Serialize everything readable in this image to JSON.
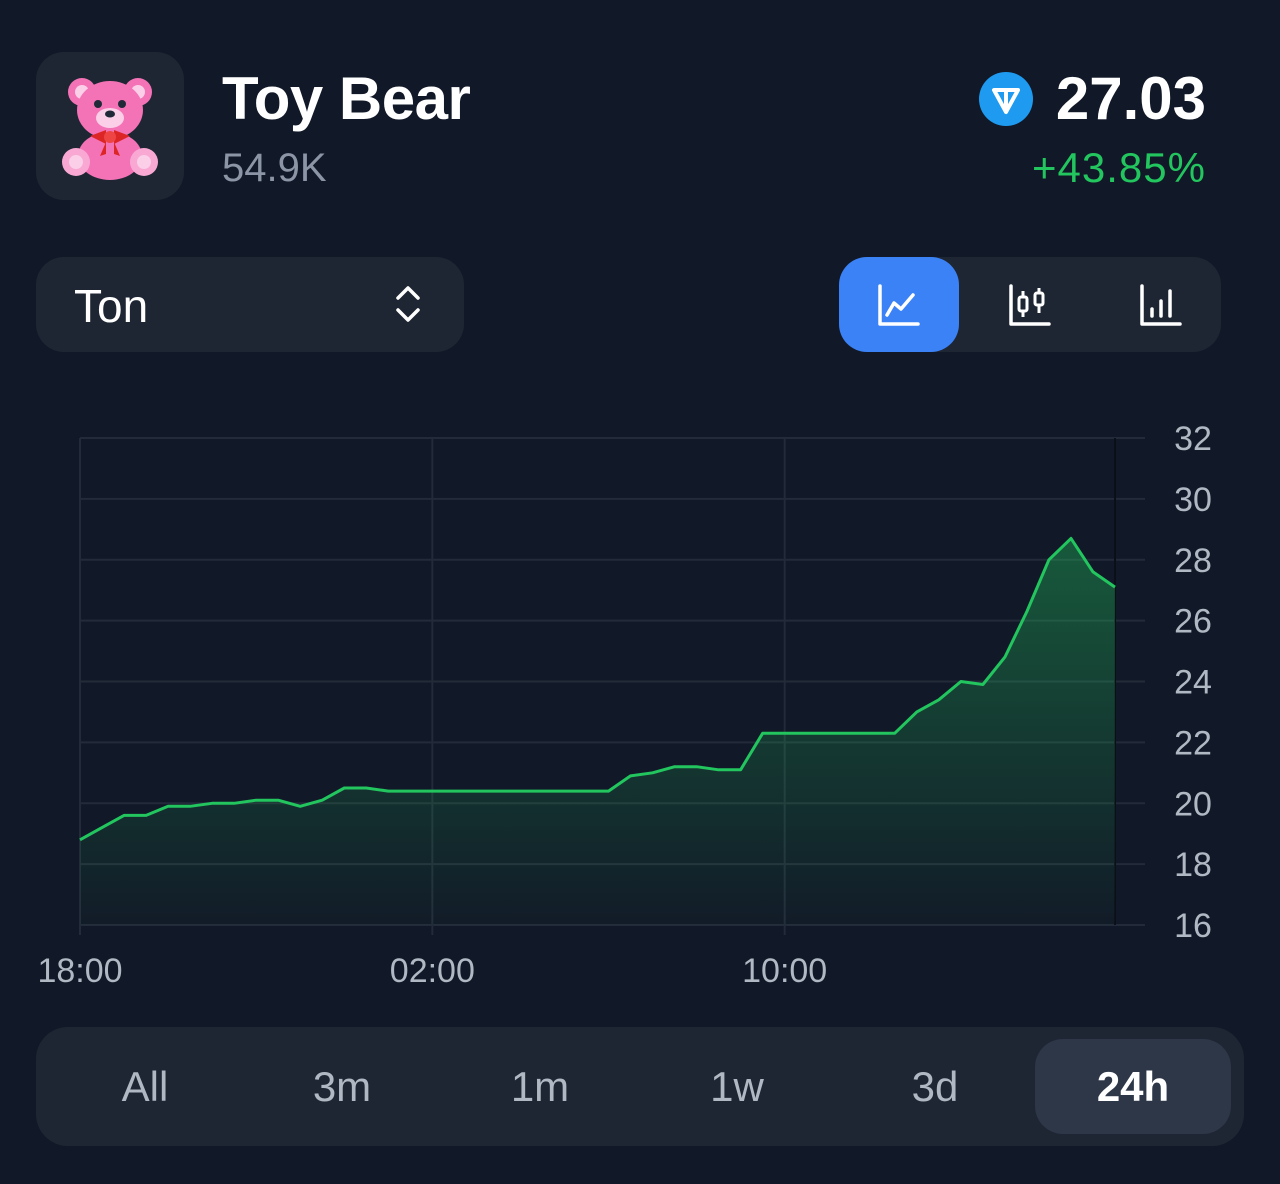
{
  "header": {
    "title": "Toy Bear",
    "subtitle": "54.9K",
    "price": "27.03",
    "change": "+43.85%",
    "currency_icon": "ton-icon",
    "avatar_icon": "teddy-bear-icon"
  },
  "currency_selector": {
    "value": "Ton",
    "icon": "chevron-up-down-icon"
  },
  "chart_type_buttons": [
    {
      "name": "line-chart",
      "icon": "line-chart-icon",
      "active": true
    },
    {
      "name": "candlestick-chart",
      "icon": "candlestick-icon",
      "active": false
    },
    {
      "name": "bar-chart",
      "icon": "bar-chart-icon",
      "active": false
    }
  ],
  "time_ranges": [
    {
      "label": "All",
      "active": false
    },
    {
      "label": "3m",
      "active": false
    },
    {
      "label": "1m",
      "active": false
    },
    {
      "label": "1w",
      "active": false
    },
    {
      "label": "3d",
      "active": false
    },
    {
      "label": "24h",
      "active": true
    }
  ],
  "colors": {
    "background": "#111827",
    "panel": "#1f2633",
    "accent": "#3b82f6",
    "positive": "#22c55e",
    "ton": "#1e9bf0"
  },
  "chart_data": {
    "type": "area",
    "x_tick_labels": [
      "18:00",
      "02:00",
      "10:00"
    ],
    "y_ticks": [
      16,
      18,
      20,
      22,
      24,
      26,
      28,
      30,
      32
    ],
    "ylim": [
      16,
      32
    ],
    "xlim_hours": [
      0,
      23.5
    ],
    "grid": true,
    "line_color": "#22c55e",
    "series": [
      {
        "x_hours": [
          0,
          0.5,
          1,
          1.5,
          2,
          2.5,
          3,
          3.5,
          4,
          4.5,
          5,
          5.5,
          6,
          6.5,
          7,
          7.5,
          8,
          8.5,
          9,
          9.5,
          10,
          10.5,
          11,
          11.5,
          12,
          12.5,
          13,
          13.5,
          14,
          14.5,
          15,
          15.5,
          16,
          16.5,
          17,
          17.5,
          18,
          18.5,
          19,
          19.5,
          20,
          20.5,
          21,
          21.5,
          22,
          22.5,
          23,
          23.5
        ],
        "values": [
          18.8,
          19.2,
          19.6,
          19.6,
          19.9,
          19.9,
          20.0,
          20.0,
          20.1,
          20.1,
          19.9,
          20.1,
          20.5,
          20.5,
          20.4,
          20.4,
          20.4,
          20.4,
          20.4,
          20.4,
          20.4,
          20.4,
          20.4,
          20.4,
          20.4,
          20.9,
          21.0,
          21.2,
          21.2,
          21.1,
          21.1,
          22.3,
          22.3,
          22.3,
          22.3,
          22.3,
          22.3,
          22.3,
          23.0,
          23.4,
          24.0,
          23.9,
          24.8,
          26.3,
          28.0,
          28.7,
          27.6,
          27.1
        ]
      }
    ]
  }
}
